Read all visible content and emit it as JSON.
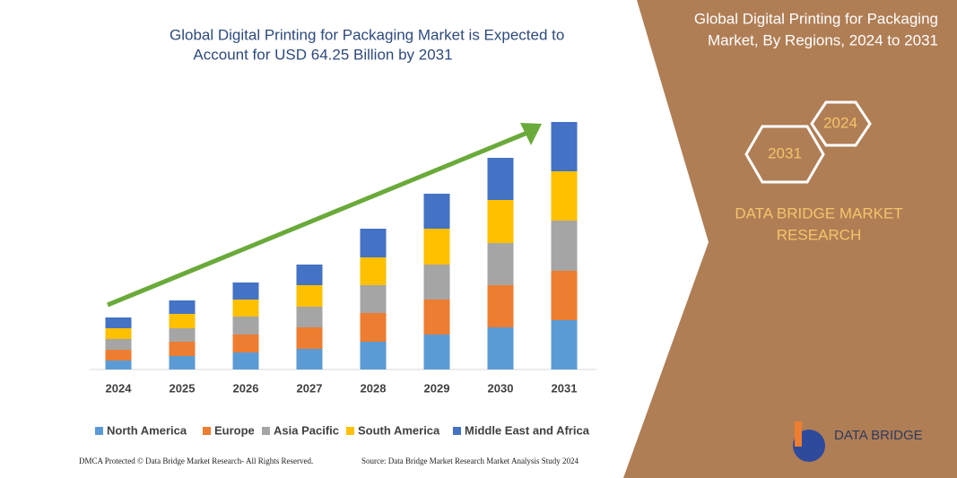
{
  "chart_data": {
    "type": "bar",
    "stacked": true,
    "title": [
      "Global Digital Printing for Packaging Market is Expected to",
      "Account for USD 64.25 Billion by 2031"
    ],
    "categories": [
      "2024",
      "2025",
      "2026",
      "2027",
      "2028",
      "2029",
      "2030",
      "2031"
    ],
    "series": [
      {
        "name": "North America",
        "color": "#5b9bd5",
        "values": [
          10,
          15,
          19,
          23,
          31,
          39,
          47,
          55
        ]
      },
      {
        "name": "Europe",
        "color": "#ed7d31",
        "values": [
          12,
          16,
          20,
          24,
          32,
          39,
          47,
          55
        ]
      },
      {
        "name": "Asia Pacific",
        "color": "#a5a5a5",
        "values": [
          12,
          15,
          20,
          23,
          31,
          39,
          47,
          56
        ]
      },
      {
        "name": "South America",
        "color": "#ffc000",
        "values": [
          12,
          16,
          19,
          24,
          31,
          40,
          48,
          55
        ]
      },
      {
        "name": "Middle East and Africa",
        "color": "#4472c4",
        "values": [
          12,
          15,
          19,
          23,
          32,
          39,
          47,
          55
        ]
      }
    ]
  },
  "side_panel": {
    "title": [
      "Global Digital Printing for Packaging",
      "Market, By Regions, 2024 to 2031"
    ],
    "hex_labels": [
      "2024",
      "2031"
    ],
    "brand": [
      "DATA BRIDGE MARKET",
      "RESEARCH"
    ],
    "logo": "DATA BRIDGE"
  },
  "footer": {
    "left": "DMCA Protected © Data Bridge Market Research- All Rights Reserved.",
    "right": "Source: Data Bridge Market Research Market Analysis Study 2024"
  }
}
